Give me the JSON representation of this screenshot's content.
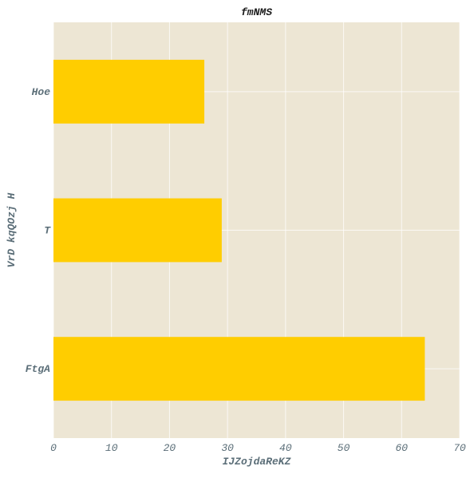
{
  "chart_data": {
    "type": "bar",
    "orientation": "horizontal",
    "title": "fmNMS",
    "xlabel": "IJZojdaReKZ",
    "ylabel": "VrD kqQOzj H",
    "categories": [
      "FtgA",
      "T",
      "Hoe"
    ],
    "values": [
      64,
      29,
      26
    ],
    "xlim": [
      0,
      70
    ],
    "xticks": [
      0,
      10,
      20,
      30,
      40,
      50,
      60,
      70
    ],
    "grid": true,
    "colors": {
      "bar": "#ffcd00",
      "plot_background": "#ede6d4",
      "grid": "#ffffff",
      "axis_text": "#5b6e78"
    }
  }
}
